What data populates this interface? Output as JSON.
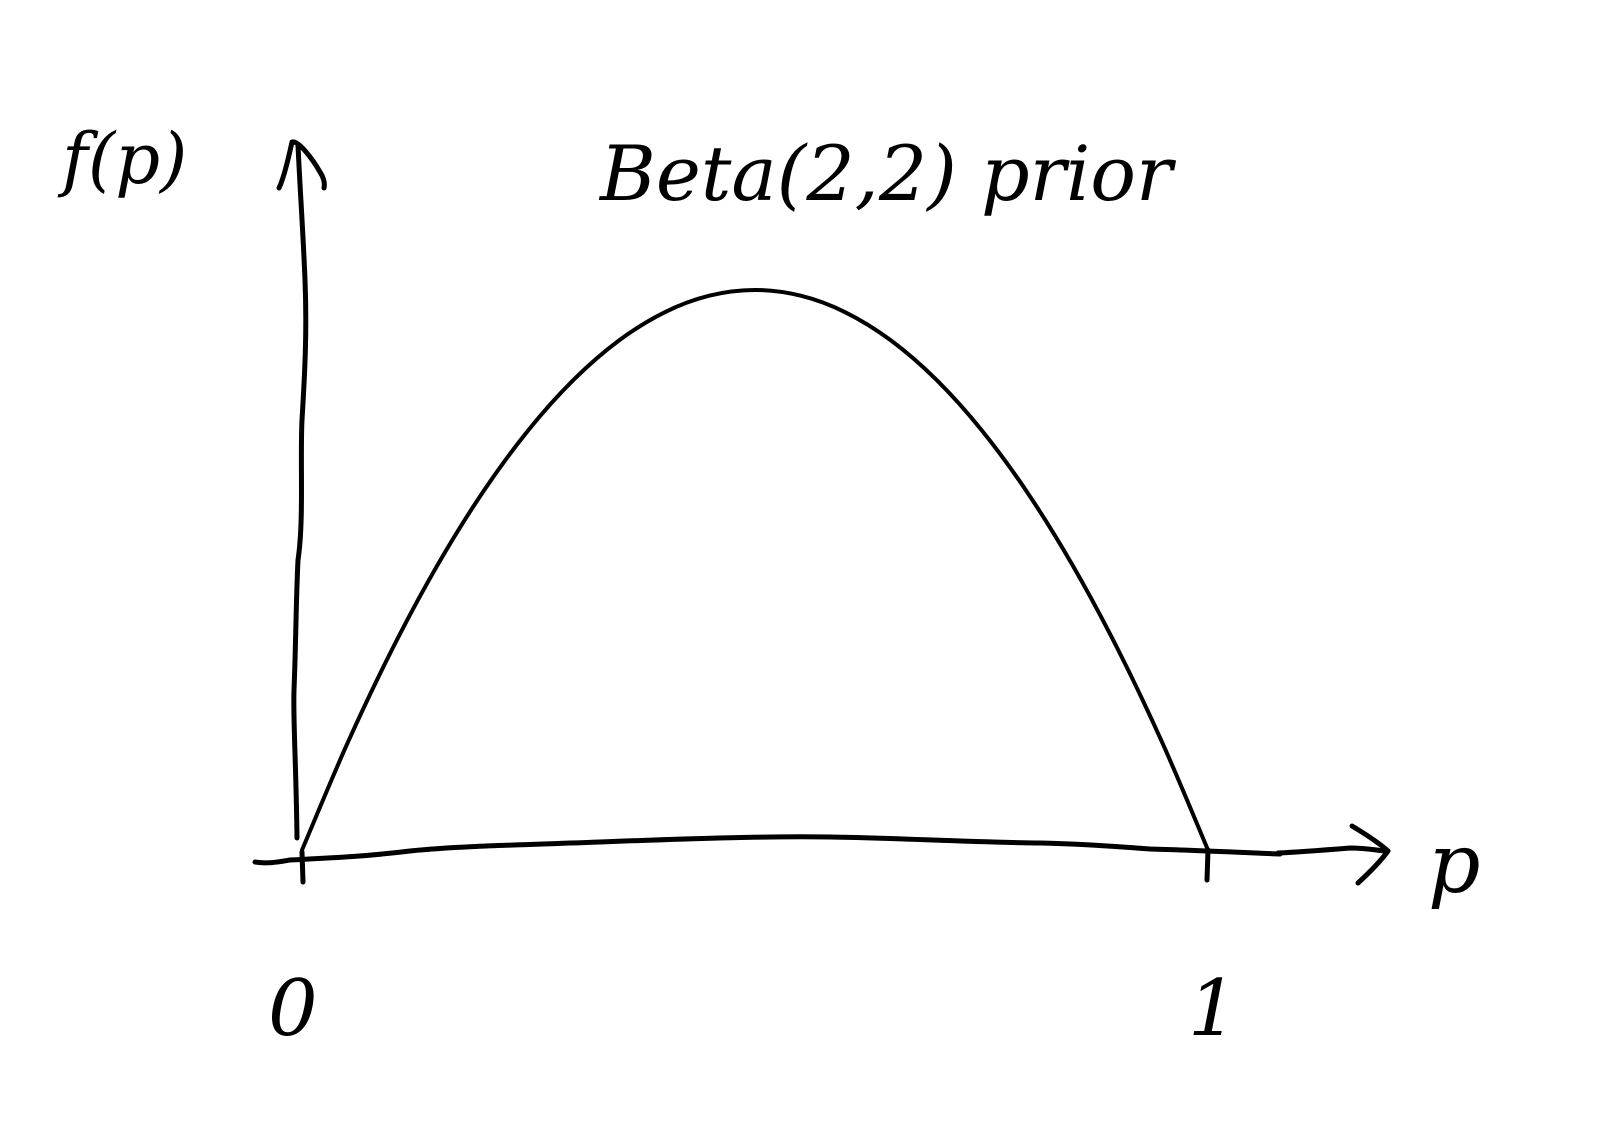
{
  "chart_data": {
    "type": "line",
    "title": "Beta(2,2) prior",
    "xlabel": "p",
    "ylabel": "f(p)",
    "x_ticks": [
      "0",
      "1"
    ],
    "xlim": [
      0,
      1
    ],
    "ylim": [
      0,
      1.5
    ],
    "grid": false,
    "legend": "none",
    "series": [
      {
        "x": [
          0,
          0.05,
          0.1,
          0.15,
          0.2,
          0.25,
          0.3,
          0.35,
          0.4,
          0.45,
          0.5,
          0.55,
          0.6,
          0.65,
          0.7,
          0.75,
          0.8,
          0.85,
          0.9,
          0.95,
          1
        ],
        "y": [
          0,
          0.285,
          0.54,
          0.765,
          0.96,
          1.125,
          1.26,
          1.365,
          1.44,
          1.485,
          1.5,
          1.485,
          1.44,
          1.365,
          1.26,
          1.125,
          0.96,
          0.765,
          0.54,
          0.285,
          0
        ]
      }
    ],
    "colors": {
      "ink": "#000000",
      "background": "#ffffff"
    }
  }
}
